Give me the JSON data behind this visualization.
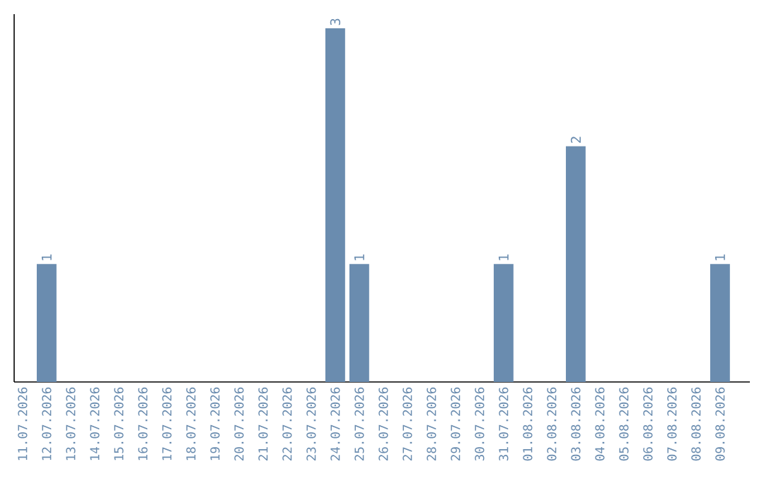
{
  "chart_data": {
    "type": "bar",
    "categories": [
      "11.07.2026",
      "12.07.2026",
      "13.07.2026",
      "14.07.2026",
      "15.07.2026",
      "16.07.2026",
      "17.07.2026",
      "18.07.2026",
      "19.07.2026",
      "20.07.2026",
      "21.07.2026",
      "22.07.2026",
      "23.07.2026",
      "24.07.2026",
      "25.07.2026",
      "26.07.2026",
      "27.07.2026",
      "28.07.2026",
      "29.07.2026",
      "30.07.2026",
      "31.07.2026",
      "01.08.2026",
      "02.08.2026",
      "03.08.2026",
      "04.08.2026",
      "05.08.2026",
      "06.08.2026",
      "07.08.2026",
      "08.08.2026",
      "09.08.2026"
    ],
    "values": [
      0,
      1,
      0,
      0,
      0,
      0,
      0,
      0,
      0,
      0,
      0,
      0,
      0,
      3,
      1,
      0,
      0,
      0,
      0,
      0,
      1,
      0,
      0,
      2,
      0,
      0,
      0,
      0,
      0,
      1
    ],
    "value_labels": [
      null,
      "1",
      null,
      null,
      null,
      null,
      null,
      null,
      null,
      null,
      null,
      null,
      null,
      "3",
      "1",
      null,
      null,
      null,
      null,
      null,
      "1",
      null,
      null,
      "2",
      null,
      null,
      null,
      null,
      null,
      "1"
    ],
    "color": "#6a8caf"
  }
}
